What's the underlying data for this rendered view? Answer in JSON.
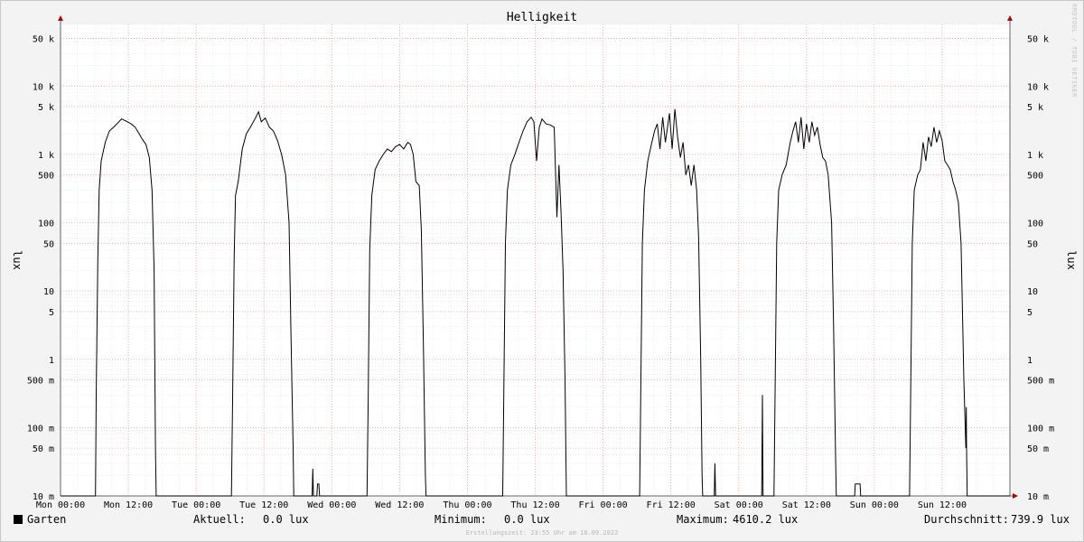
{
  "chart_data": {
    "type": "line",
    "title": "Helligkeit",
    "ylabel": "lux",
    "y_scale": "log",
    "ylim": [
      0.01,
      80000
    ],
    "y_ticks": [
      {
        "value": 50000,
        "label": "50 k"
      },
      {
        "value": 10000,
        "label": "10 k"
      },
      {
        "value": 5000,
        "label": "5 k"
      },
      {
        "value": 1000,
        "label": "1 k"
      },
      {
        "value": 500,
        "label": "500"
      },
      {
        "value": 100,
        "label": "100"
      },
      {
        "value": 50,
        "label": "50"
      },
      {
        "value": 10,
        "label": "10"
      },
      {
        "value": 5,
        "label": "5"
      },
      {
        "value": 1,
        "label": "1"
      },
      {
        "value": 0.5,
        "label": "500 m"
      },
      {
        "value": 0.1,
        "label": "100 m"
      },
      {
        "value": 0.05,
        "label": "50 m"
      },
      {
        "value": 0.01,
        "label": "10 m"
      }
    ],
    "xlim": [
      0,
      7
    ],
    "x_unit": "days from Mon 00:00",
    "x_ticks": [
      {
        "value": 0,
        "label": "Mon 00:00"
      },
      {
        "value": 0.5,
        "label": "Mon 12:00"
      },
      {
        "value": 1,
        "label": "Tue 00:00"
      },
      {
        "value": 1.5,
        "label": "Tue 12:00"
      },
      {
        "value": 2,
        "label": "Wed 00:00"
      },
      {
        "value": 2.5,
        "label": "Wed 12:00"
      },
      {
        "value": 3,
        "label": "Thu 00:00"
      },
      {
        "value": 3.5,
        "label": "Thu 12:00"
      },
      {
        "value": 4,
        "label": "Fri 00:00"
      },
      {
        "value": 4.5,
        "label": "Fri 12:00"
      },
      {
        "value": 5,
        "label": "Sat 00:00"
      },
      {
        "value": 5.5,
        "label": "Sat 12:00"
      },
      {
        "value": 6,
        "label": "Sun 00:00"
      },
      {
        "value": 6.5,
        "label": "Sun 12:00"
      }
    ],
    "grid": true,
    "line_color": "#000000",
    "grid_color": "#f0a0a0",
    "series": [
      {
        "name": "Garten",
        "color": "#000000",
        "points": [
          [
            0.0,
            0.01
          ],
          [
            0.258,
            0.01
          ],
          [
            0.263,
            0.3
          ],
          [
            0.275,
            30
          ],
          [
            0.285,
            300
          ],
          [
            0.3,
            800
          ],
          [
            0.33,
            1500
          ],
          [
            0.36,
            2200
          ],
          [
            0.4,
            2600
          ],
          [
            0.43,
            3000
          ],
          [
            0.45,
            3300
          ],
          [
            0.48,
            3100
          ],
          [
            0.52,
            2800
          ],
          [
            0.55,
            2500
          ],
          [
            0.58,
            2000
          ],
          [
            0.6,
            1700
          ],
          [
            0.63,
            1400
          ],
          [
            0.655,
            900
          ],
          [
            0.675,
            300
          ],
          [
            0.69,
            20
          ],
          [
            0.7,
            0.05
          ],
          [
            0.705,
            0.01
          ],
          [
            1.26,
            0.01
          ],
          [
            1.268,
            0.2
          ],
          [
            1.28,
            30
          ],
          [
            1.29,
            250
          ],
          [
            1.31,
            400
          ],
          [
            1.34,
            1200
          ],
          [
            1.37,
            2000
          ],
          [
            1.4,
            2500
          ],
          [
            1.43,
            3200
          ],
          [
            1.46,
            4200
          ],
          [
            1.48,
            3000
          ],
          [
            1.51,
            3400
          ],
          [
            1.54,
            2500
          ],
          [
            1.57,
            2200
          ],
          [
            1.6,
            1600
          ],
          [
            1.63,
            1000
          ],
          [
            1.66,
            500
          ],
          [
            1.685,
            100
          ],
          [
            1.7,
            2
          ],
          [
            1.715,
            0.05
          ],
          [
            1.72,
            0.01
          ],
          [
            1.855,
            0.01
          ],
          [
            1.86,
            0.025
          ],
          [
            1.865,
            0.01
          ],
          [
            1.89,
            0.01
          ],
          [
            1.895,
            0.015
          ],
          [
            1.905,
            0.015
          ],
          [
            1.91,
            0.01
          ],
          [
            2.26,
            0.01
          ],
          [
            2.268,
            0.2
          ],
          [
            2.28,
            40
          ],
          [
            2.295,
            250
          ],
          [
            2.32,
            600
          ],
          [
            2.35,
            800
          ],
          [
            2.38,
            1000
          ],
          [
            2.41,
            1200
          ],
          [
            2.44,
            1100
          ],
          [
            2.47,
            1300
          ],
          [
            2.5,
            1400
          ],
          [
            2.53,
            1200
          ],
          [
            2.56,
            1500
          ],
          [
            2.58,
            1400
          ],
          [
            2.6,
            1000
          ],
          [
            2.62,
            400
          ],
          [
            2.645,
            350
          ],
          [
            2.66,
            80
          ],
          [
            2.675,
            2
          ],
          [
            2.69,
            0.02
          ],
          [
            2.695,
            0.01
          ],
          [
            3.26,
            0.01
          ],
          [
            3.268,
            0.3
          ],
          [
            3.28,
            50
          ],
          [
            3.295,
            300
          ],
          [
            3.32,
            700
          ],
          [
            3.35,
            1000
          ],
          [
            3.38,
            1500
          ],
          [
            3.41,
            2200
          ],
          [
            3.44,
            3000
          ],
          [
            3.47,
            3500
          ],
          [
            3.49,
            3000
          ],
          [
            3.51,
            800
          ],
          [
            3.53,
            2500
          ],
          [
            3.55,
            3300
          ],
          [
            3.58,
            2800
          ],
          [
            3.61,
            2700
          ],
          [
            3.64,
            2500
          ],
          [
            3.66,
            120
          ],
          [
            3.675,
            700
          ],
          [
            3.69,
            150
          ],
          [
            3.705,
            20
          ],
          [
            3.72,
            0.5
          ],
          [
            3.73,
            0.01
          ],
          [
            4.27,
            0.01
          ],
          [
            4.278,
            0.3
          ],
          [
            4.29,
            50
          ],
          [
            4.305,
            300
          ],
          [
            4.33,
            800
          ],
          [
            4.36,
            1500
          ],
          [
            4.38,
            2200
          ],
          [
            4.4,
            2800
          ],
          [
            4.42,
            1200
          ],
          [
            4.44,
            3500
          ],
          [
            4.46,
            1500
          ],
          [
            4.49,
            4000
          ],
          [
            4.51,
            1200
          ],
          [
            4.53,
            4600
          ],
          [
            4.55,
            1800
          ],
          [
            4.57,
            900
          ],
          [
            4.59,
            1500
          ],
          [
            4.61,
            500
          ],
          [
            4.63,
            700
          ],
          [
            4.65,
            350
          ],
          [
            4.67,
            700
          ],
          [
            4.69,
            300
          ],
          [
            4.705,
            60
          ],
          [
            4.72,
            1
          ],
          [
            4.73,
            0.02
          ],
          [
            4.735,
            0.01
          ],
          [
            4.82,
            0.01
          ],
          [
            4.825,
            0.03
          ],
          [
            4.83,
            0.01
          ],
          [
            5.17,
            0.01
          ],
          [
            5.175,
            0.3
          ],
          [
            5.18,
            0.01
          ],
          [
            5.26,
            0.01
          ],
          [
            5.268,
            0.3
          ],
          [
            5.28,
            50
          ],
          [
            5.295,
            300
          ],
          [
            5.32,
            500
          ],
          [
            5.35,
            700
          ],
          [
            5.38,
            1500
          ],
          [
            5.4,
            2200
          ],
          [
            5.42,
            3000
          ],
          [
            5.44,
            1500
          ],
          [
            5.46,
            3500
          ],
          [
            5.48,
            1200
          ],
          [
            5.5,
            2800
          ],
          [
            5.52,
            1500
          ],
          [
            5.54,
            3000
          ],
          [
            5.56,
            1900
          ],
          [
            5.58,
            2500
          ],
          [
            5.6,
            1400
          ],
          [
            5.62,
            900
          ],
          [
            5.64,
            800
          ],
          [
            5.66,
            500
          ],
          [
            5.685,
            100
          ],
          [
            5.7,
            3
          ],
          [
            5.715,
            0.03
          ],
          [
            5.72,
            0.01
          ],
          [
            5.855,
            0.01
          ],
          [
            5.86,
            0.015
          ],
          [
            5.895,
            0.015
          ],
          [
            5.9,
            0.01
          ],
          [
            6.26,
            0.01
          ],
          [
            6.268,
            0.3
          ],
          [
            6.28,
            50
          ],
          [
            6.295,
            300
          ],
          [
            6.32,
            500
          ],
          [
            6.34,
            600
          ],
          [
            6.36,
            1500
          ],
          [
            6.38,
            800
          ],
          [
            6.4,
            1800
          ],
          [
            6.42,
            1300
          ],
          [
            6.44,
            2500
          ],
          [
            6.46,
            1500
          ],
          [
            6.48,
            2200
          ],
          [
            6.5,
            1600
          ],
          [
            6.52,
            800
          ],
          [
            6.54,
            700
          ],
          [
            6.56,
            600
          ],
          [
            6.58,
            400
          ],
          [
            6.6,
            300
          ],
          [
            6.62,
            200
          ],
          [
            6.64,
            50
          ],
          [
            6.66,
            0.5
          ],
          [
            6.675,
            0.05
          ],
          [
            6.678,
            0.2
          ],
          [
            6.68,
            0.05
          ],
          [
            6.685,
            0.01
          ],
          [
            7.0,
            0.01
          ]
        ]
      }
    ],
    "legend": {
      "series_name": "Garten",
      "aktuell_label": "Aktuell:",
      "aktuell_value": "0.0 lux",
      "minimum_label": "Minimum:",
      "minimum_value": "0.0 lux",
      "maximum_label": "Maximum:",
      "maximum_value": "4610.2 lux",
      "durchschnitt_label": "Durchschnitt:",
      "durchschnitt_value": "739.9 lux"
    }
  },
  "watermark": "RRDTOOL / TOBI OETIKER",
  "footer": "Erstellungszeit: 23:55 Uhr am 18.09.2022"
}
